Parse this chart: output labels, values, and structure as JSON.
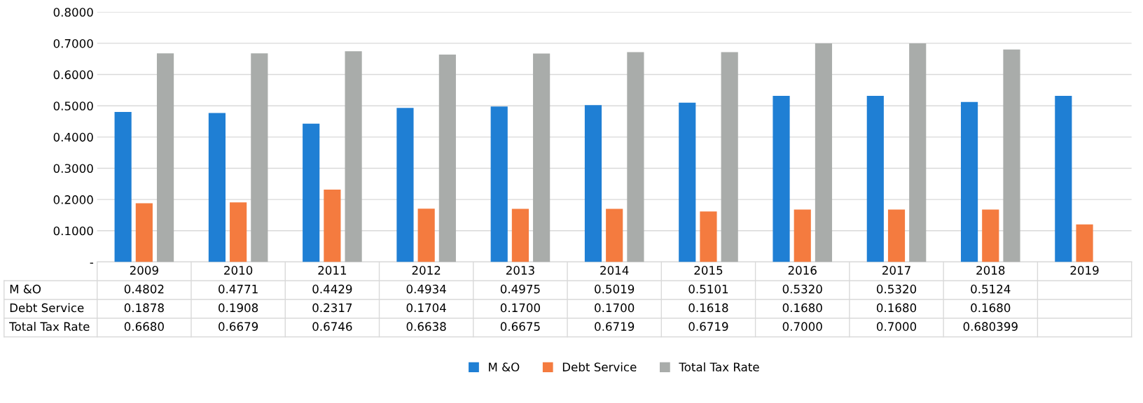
{
  "chart_data": {
    "type": "bar",
    "categories": [
      "2009",
      "2010",
      "2011",
      "2012",
      "2013",
      "2014",
      "2015",
      "2016",
      "2017",
      "2018",
      "2019"
    ],
    "series": [
      {
        "name": "M &O",
        "color": "#1f7fd4",
        "values": [
          0.4802,
          0.4771,
          0.4429,
          0.4934,
          0.4975,
          0.5019,
          0.5101,
          0.532,
          0.532,
          0.5124,
          0.532
        ],
        "value_labels": [
          "0.4802",
          "0.4771",
          "0.4429",
          "0.4934",
          "0.4975",
          "0.5019",
          "0.5101",
          "0.5320",
          "0.5320",
          "0.5124",
          null
        ]
      },
      {
        "name": "Debt Service",
        "color": "#f47b3f",
        "values": [
          0.1878,
          0.1908,
          0.2317,
          0.1704,
          0.17,
          0.17,
          0.1618,
          0.168,
          0.168,
          0.168,
          0.12
        ],
        "value_labels": [
          "0.1878",
          "0.1908",
          "0.2317",
          "0.1704",
          "0.1700",
          "0.1700",
          "0.1618",
          "0.1680",
          "0.1680",
          "0.1680",
          null
        ]
      },
      {
        "name": "Total Tax Rate",
        "color": "#a9acaa",
        "values": [
          0.668,
          0.6679,
          0.6746,
          0.6638,
          0.6675,
          0.6719,
          0.6719,
          0.7,
          0.7,
          0.680399,
          null
        ],
        "value_labels": [
          "0.6680",
          "0.6679",
          "0.6746",
          "0.6638",
          "0.6675",
          "0.6719",
          "0.6719",
          "0.7000",
          "0.7000",
          "0.680399",
          null
        ]
      }
    ],
    "ylim": [
      0,
      0.8
    ],
    "yticks": [
      {
        "value": 0,
        "label": "-"
      },
      {
        "value": 0.1,
        "label": "0.1000"
      },
      {
        "value": 0.2,
        "label": "0.2000"
      },
      {
        "value": 0.3,
        "label": "0.3000"
      },
      {
        "value": 0.4,
        "label": "0.4000"
      },
      {
        "value": 0.5,
        "label": "0.5000"
      },
      {
        "value": 0.6,
        "label": "0.6000"
      },
      {
        "value": 0.7,
        "label": "0.7000"
      },
      {
        "value": 0.8,
        "label": "0.8000"
      }
    ],
    "grid": "y",
    "legend": "bottom"
  }
}
